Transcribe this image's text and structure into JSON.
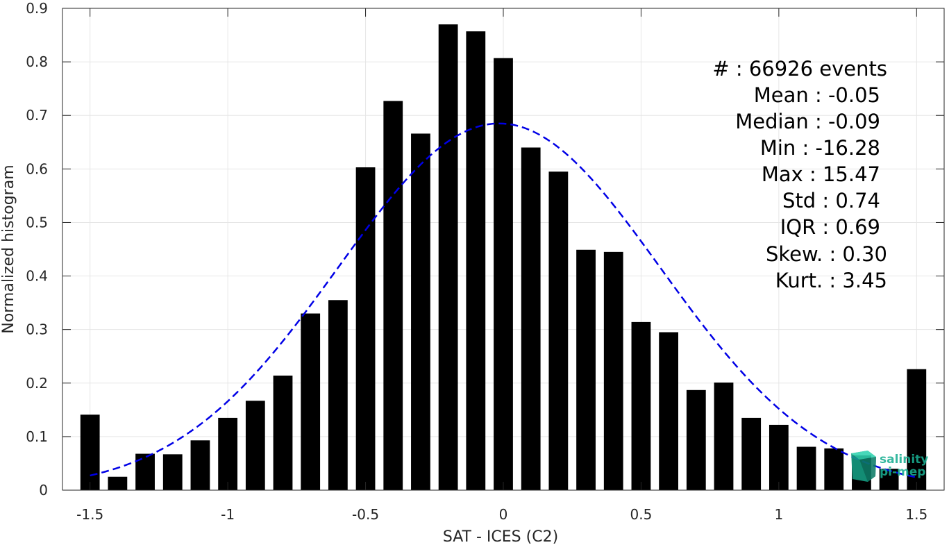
{
  "chart_data": {
    "type": "bar",
    "title": "",
    "xlabel": "SAT - ICES (C2)",
    "ylabel": "Normalized histogram",
    "xlim": [
      -1.6,
      1.6
    ],
    "ylim": [
      0,
      0.9
    ],
    "grid": true,
    "x_ticks": [
      -1.5,
      -1,
      -0.5,
      0,
      0.5,
      1,
      1.5
    ],
    "x_tick_labels": [
      "-1.5",
      "-1",
      "-0.5",
      "0",
      "0.5",
      "1",
      "1.5"
    ],
    "y_ticks": [
      0,
      0.1,
      0.2,
      0.3,
      0.4,
      0.5,
      0.6,
      0.7,
      0.8,
      0.9
    ],
    "y_tick_labels": [
      "0",
      "0.1",
      "0.2",
      "0.3",
      "0.4",
      "0.5",
      "0.6",
      "0.7",
      "0.8",
      "0.9"
    ],
    "series": [
      {
        "type": "bar",
        "color": "#000000",
        "bar_width": 0.07,
        "x": [
          -1.5,
          -1.4,
          -1.3,
          -1.2,
          -1.1,
          -1.0,
          -0.9,
          -0.8,
          -0.7,
          -0.6,
          -0.5,
          -0.4,
          -0.3,
          -0.2,
          -0.1,
          0.0,
          0.1,
          0.2,
          0.3,
          0.4,
          0.5,
          0.6,
          0.7,
          0.8,
          0.9,
          1.0,
          1.1,
          1.2,
          1.3,
          1.4,
          1.5
        ],
        "values": [
          0.141,
          0.025,
          0.068,
          0.067,
          0.093,
          0.135,
          0.167,
          0.214,
          0.33,
          0.355,
          0.603,
          0.727,
          0.666,
          0.87,
          0.857,
          0.807,
          0.64,
          0.595,
          0.449,
          0.445,
          0.314,
          0.295,
          0.187,
          0.201,
          0.135,
          0.122,
          0.081,
          0.078,
          0.065,
          0.04,
          0.226
        ]
      },
      {
        "type": "line",
        "style": "dashed",
        "color": "#0000e6",
        "fit": "gaussian",
        "mean": -0.015,
        "std": 0.585,
        "peak": 0.685,
        "x_range": [
          -1.5,
          1.5
        ]
      }
    ],
    "annotation_lines": [
      "#  : 66926 events",
      "Mean : -0.05",
      "Median : -0.09",
      "Min : -16.28",
      "Max : 15.47",
      "Std : 0.74",
      "IQR : 0.69",
      "Skew. : 0.30",
      "Kurt. : 3.45"
    ]
  },
  "logo": {
    "line1": "salinity",
    "line2": "pi-mep",
    "color": "#1aaf92"
  }
}
